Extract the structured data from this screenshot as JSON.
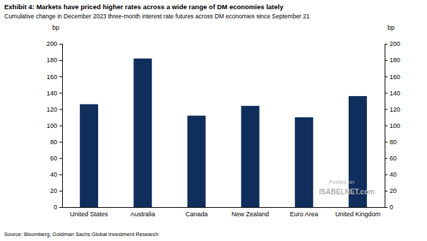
{
  "chart_data": {
    "type": "bar",
    "title": "Exhibit 4: Markets have priced higher rates across a wide range of DM economies lately",
    "subtitle": "Cumulative change in December 2023 three-month interest rate futures across DM economies since September 21",
    "y_label": "bp",
    "source": "Source: Bloomberg, Goldman Sachs Global Investment Research",
    "annotations": [
      "Posted on",
      "ISABELNET.com"
    ],
    "categories": [
      "United States",
      "Australia",
      "Canada",
      "New Zealand",
      "Euro Area",
      "United Kingdom"
    ],
    "values": [
      126,
      182,
      112,
      124,
      110,
      136
    ],
    "color": "#0f2e5c",
    "ylim": [
      0,
      200
    ],
    "yticks": [
      0,
      20,
      40,
      60,
      80,
      100,
      120,
      140,
      160,
      180,
      200
    ],
    "grid": false
  }
}
